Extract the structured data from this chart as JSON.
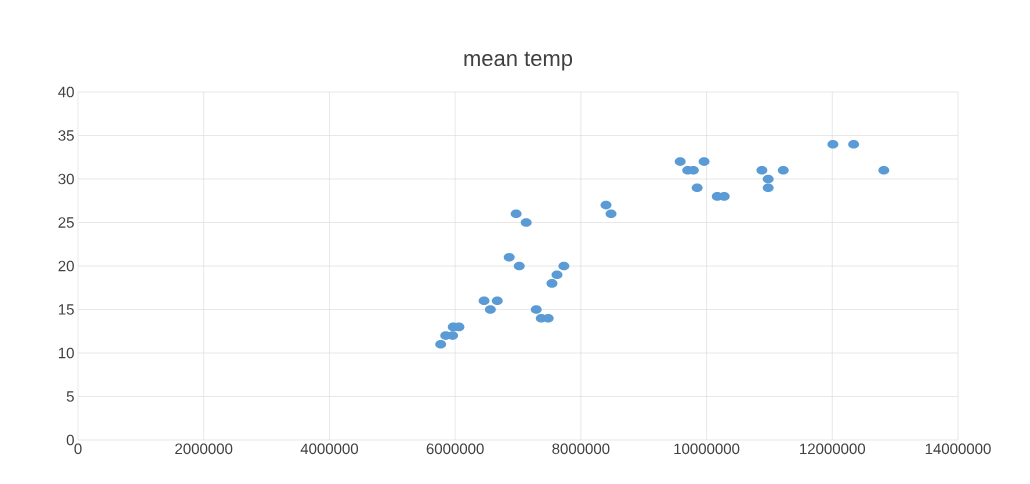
{
  "chart_data": {
    "type": "scatter",
    "title": "mean temp",
    "x": [
      5770000,
      5850000,
      5960000,
      5970000,
      6060000,
      6460000,
      6560000,
      6670000,
      6860000,
      6970000,
      7020000,
      7130000,
      7290000,
      7370000,
      7480000,
      7540000,
      7620000,
      7730000,
      8400000,
      8480000,
      9580000,
      9700000,
      9790000,
      9850000,
      9960000,
      10170000,
      10280000,
      10880000,
      10980000,
      10980000,
      11220000,
      12010000,
      12340000,
      12820000
    ],
    "values": [
      11,
      12,
      12,
      13,
      13,
      16,
      15,
      16,
      21,
      26,
      20,
      25,
      15,
      14,
      14,
      18,
      19,
      20,
      27,
      26,
      32,
      31,
      31,
      29,
      32,
      28,
      28,
      31,
      30,
      29,
      31,
      34,
      34,
      31
    ],
    "color": "#5b9bd5",
    "marker": "circle",
    "grid": true,
    "xlim": [
      0,
      14000000
    ],
    "xticks": [
      0,
      2000000,
      4000000,
      6000000,
      8000000,
      10000000,
      12000000,
      14000000
    ],
    "ylim": [
      0,
      40
    ],
    "yticks": [
      0,
      5,
      10,
      15,
      20,
      25,
      30,
      35,
      40
    ]
  }
}
